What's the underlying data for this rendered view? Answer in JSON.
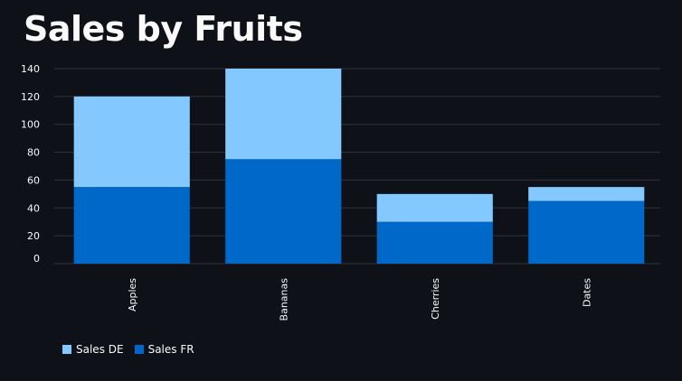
{
  "title": "Sales by Fruits",
  "colors": {
    "background": "#0e1117",
    "grid": "#31333f",
    "text": "#fafafa"
  },
  "chart_data": {
    "type": "bar",
    "stacked": true,
    "title": "Sales by Fruits",
    "categories": [
      "Apples",
      "Bananas",
      "Cherries",
      "Dates"
    ],
    "series": [
      {
        "name": "Sales FR",
        "values": [
          55,
          75,
          30,
          45
        ],
        "color": "#0068c9"
      },
      {
        "name": "Sales DE",
        "values": [
          65,
          65,
          20,
          10
        ],
        "color": "#83c9ff"
      }
    ],
    "legend": {
      "position": "bottom-left",
      "entries": [
        {
          "name": "Sales DE",
          "color": "#83c9ff"
        },
        {
          "name": "Sales FR",
          "color": "#0068c9"
        }
      ]
    },
    "yticks": [
      0,
      20,
      40,
      60,
      80,
      100,
      120,
      140
    ],
    "ylim": [
      0,
      140
    ],
    "grid": true,
    "xlabel": "",
    "ylabel": ""
  }
}
